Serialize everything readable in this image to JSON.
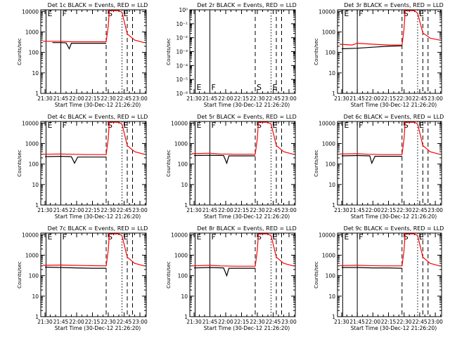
{
  "figure": {
    "xlabel": "Start Time (30-Dec-12 21:26:20)",
    "ylabel": "Counts/sec"
  },
  "chart_data": [
    {
      "type": "line",
      "title": "Det 1c BLACK = Events, RED = LLD",
      "xlabel": "Start Time (30-Dec-12 21:26:20)",
      "ylabel": "Counts/sec",
      "x_ticks": [
        "21:30",
        "21:45",
        "22:00",
        "22:15",
        "22:30",
        "22:45",
        "23:00"
      ],
      "y_ticks": [
        "1",
        "10",
        "100",
        "1000",
        "10000"
      ],
      "y_scale": "log",
      "ylim": [
        1,
        12000
      ],
      "markers": [
        {
          "time": "21:31",
          "label": "E",
          "style": "solid"
        },
        {
          "time": "21:45",
          "label": "F",
          "style": "solid"
        },
        {
          "time": "22:28",
          "label": "S",
          "style": "dashed"
        },
        {
          "time": "22:43",
          "label": "E",
          "style": "dotted"
        },
        {
          "time": "22:48",
          "label": "",
          "style": "dashed"
        },
        {
          "time": "22:53",
          "label": "",
          "style": "dashed"
        }
      ],
      "series": [
        {
          "name": "Events",
          "color": "#000000",
          "x": [
            "21:37",
            "21:45",
            "21:50",
            "21:53",
            "21:55",
            "21:56",
            "22:10",
            "22:28"
          ],
          "y": [
            300,
            300,
            290,
            150,
            280,
            280,
            280,
            280
          ]
        },
        {
          "name": "LLD",
          "color": "#ff0000",
          "x": [
            "21:28",
            "21:45",
            "21:55",
            "22:10",
            "22:28",
            "22:30",
            "22:31",
            "22:40",
            "22:43",
            "22:48",
            "22:55",
            "23:04"
          ],
          "y": [
            350,
            350,
            330,
            330,
            330,
            2000,
            11000,
            11000,
            9000,
            800,
            400,
            300
          ]
        }
      ]
    },
    {
      "type": "line",
      "title": "Det 2r BLACK = Events, RED = LLD",
      "xlabel": "Start Time (30-Dec-12 21:26:20)",
      "ylabel": "Counts/sec",
      "x_ticks": [
        "21:30",
        "21:45",
        "22:00",
        "22:15",
        "22:30",
        "22:45",
        "23:00"
      ],
      "y_ticks": [
        "10⁻⁶",
        "10⁻⁵",
        "10⁻⁴",
        "10⁻³",
        "10⁻²",
        "10⁻¹",
        "10⁰"
      ],
      "y_scale": "log",
      "ylim": [
        1e-06,
        1
      ],
      "markers": [
        {
          "time": "21:31",
          "label": "E",
          "style": "solid"
        },
        {
          "time": "21:45",
          "label": "F",
          "style": "solid"
        },
        {
          "time": "22:28",
          "label": "S",
          "style": "dashed"
        },
        {
          "time": "22:43",
          "label": "E",
          "style": "dotted"
        },
        {
          "time": "22:48",
          "label": "",
          "style": "dashed"
        },
        {
          "time": "22:53",
          "label": "",
          "style": "dashed"
        }
      ],
      "series": []
    },
    {
      "type": "line",
      "title": "Det 3r BLACK = Events, RED = LLD",
      "xlabel": "Start Time (30-Dec-12 21:26:20)",
      "ylabel": "Counts/sec",
      "x_ticks": [
        "21:30",
        "21:45",
        "22:00",
        "22:15",
        "22:30",
        "22:45",
        "23:00"
      ],
      "y_ticks": [
        "1",
        "10",
        "100",
        "1000",
        "10000"
      ],
      "y_scale": "log",
      "ylim": [
        1,
        12000
      ],
      "markers": [
        {
          "time": "21:31",
          "label": "E",
          "style": "solid"
        },
        {
          "time": "21:45",
          "label": "F",
          "style": "solid"
        },
        {
          "time": "22:28",
          "label": "S",
          "style": "dashed"
        },
        {
          "time": "22:43",
          "label": "E",
          "style": "dotted"
        },
        {
          "time": "22:48",
          "label": "",
          "style": "dashed"
        },
        {
          "time": "22:53",
          "label": "",
          "style": "dashed"
        }
      ],
      "series": [
        {
          "name": "Events",
          "color": "#000000",
          "x": [
            "21:30",
            "21:45",
            "22:00",
            "22:15",
            "22:28"
          ],
          "y": [
            150,
            160,
            180,
            200,
            210
          ]
        },
        {
          "name": "LLD",
          "color": "#ff0000",
          "x": [
            "21:28",
            "21:40",
            "21:45",
            "22:00",
            "22:15",
            "22:28",
            "22:30",
            "22:31",
            "22:40",
            "22:43",
            "22:48",
            "22:55",
            "23:04"
          ],
          "y": [
            250,
            230,
            280,
            250,
            230,
            230,
            1500,
            11000,
            11000,
            8000,
            900,
            500,
            400
          ]
        }
      ]
    },
    {
      "type": "line",
      "title": "Det 4c BLACK = Events, RED = LLD",
      "xlabel": "Start Time (30-Dec-12 21:26:20)",
      "ylabel": "Counts/sec",
      "x_ticks": [
        "21:30",
        "21:45",
        "22:00",
        "22:15",
        "22:30",
        "22:45",
        "23:00"
      ],
      "y_ticks": [
        "1",
        "10",
        "100",
        "1000",
        "10000"
      ],
      "y_scale": "log",
      "ylim": [
        1,
        12000
      ],
      "markers": [
        {
          "time": "21:31",
          "label": "E",
          "style": "solid"
        },
        {
          "time": "21:45",
          "label": "F",
          "style": "solid"
        },
        {
          "time": "22:28",
          "label": "S",
          "style": "dashed"
        },
        {
          "time": "22:43",
          "label": "E",
          "style": "dotted"
        },
        {
          "time": "22:48",
          "label": "",
          "style": "dashed"
        },
        {
          "time": "22:53",
          "label": "",
          "style": "dashed"
        }
      ],
      "series": [
        {
          "name": "Events",
          "color": "#000000",
          "x": [
            "21:30",
            "21:45",
            "21:55",
            "21:58",
            "22:01",
            "22:02",
            "22:28"
          ],
          "y": [
            230,
            240,
            230,
            110,
            220,
            220,
            220
          ]
        },
        {
          "name": "LLD",
          "color": "#ff0000",
          "x": [
            "21:28",
            "21:45",
            "21:55",
            "22:10",
            "22:28",
            "22:30",
            "22:31",
            "22:40",
            "22:43",
            "22:48",
            "22:55",
            "23:04"
          ],
          "y": [
            300,
            310,
            300,
            290,
            290,
            1800,
            11000,
            11000,
            9000,
            800,
            400,
            300
          ]
        }
      ]
    },
    {
      "type": "line",
      "title": "Det 5r BLACK = Events, RED = LLD",
      "xlabel": "Start Time (30-Dec-12 21:26:20)",
      "ylabel": "Counts/sec",
      "x_ticks": [
        "21:30",
        "21:45",
        "22:00",
        "22:15",
        "22:30",
        "22:45",
        "23:00"
      ],
      "y_ticks": [
        "1",
        "10",
        "100",
        "1000",
        "10000"
      ],
      "y_scale": "log",
      "ylim": [
        1,
        12000
      ],
      "markers": [
        {
          "time": "21:31",
          "label": "E",
          "style": "solid"
        },
        {
          "time": "21:45",
          "label": "F",
          "style": "solid"
        },
        {
          "time": "22:28",
          "label": "S",
          "style": "dashed"
        },
        {
          "time": "22:43",
          "label": "E",
          "style": "dotted"
        },
        {
          "time": "22:48",
          "label": "",
          "style": "dashed"
        },
        {
          "time": "22:53",
          "label": "",
          "style": "dashed"
        }
      ],
      "series": [
        {
          "name": "Events",
          "color": "#000000",
          "x": [
            "21:30",
            "21:45",
            "21:58",
            "22:01",
            "22:03",
            "22:04",
            "22:28"
          ],
          "y": [
            260,
            270,
            260,
            110,
            250,
            250,
            250
          ]
        },
        {
          "name": "LLD",
          "color": "#ff0000",
          "x": [
            "21:28",
            "21:45",
            "21:55",
            "22:10",
            "22:28",
            "22:30",
            "22:31",
            "22:40",
            "22:43",
            "22:48",
            "22:55",
            "23:04"
          ],
          "y": [
            320,
            340,
            310,
            300,
            300,
            1800,
            11000,
            11000,
            9000,
            800,
            400,
            300
          ]
        }
      ]
    },
    {
      "type": "line",
      "title": "Det 6c BLACK = Events, RED = LLD",
      "xlabel": "Start Time (30-Dec-12 21:26:20)",
      "ylabel": "Counts/sec",
      "x_ticks": [
        "21:30",
        "21:45",
        "22:00",
        "22:15",
        "22:30",
        "22:45",
        "23:00"
      ],
      "y_ticks": [
        "1",
        "10",
        "100",
        "1000",
        "10000"
      ],
      "y_scale": "log",
      "ylim": [
        1,
        12000
      ],
      "markers": [
        {
          "time": "21:31",
          "label": "E",
          "style": "solid"
        },
        {
          "time": "21:45",
          "label": "F",
          "style": "solid"
        },
        {
          "time": "22:28",
          "label": "S",
          "style": "dashed"
        },
        {
          "time": "22:43",
          "label": "E",
          "style": "dotted"
        },
        {
          "time": "22:48",
          "label": "",
          "style": "dashed"
        },
        {
          "time": "22:53",
          "label": "",
          "style": "dashed"
        }
      ],
      "series": [
        {
          "name": "Events",
          "color": "#000000",
          "x": [
            "21:30",
            "21:45",
            "21:57",
            "21:59",
            "22:02",
            "22:03",
            "22:28"
          ],
          "y": [
            250,
            260,
            250,
            110,
            240,
            240,
            240
          ]
        },
        {
          "name": "LLD",
          "color": "#ff0000",
          "x": [
            "21:28",
            "21:45",
            "21:55",
            "22:10",
            "22:28",
            "22:30",
            "22:31",
            "22:40",
            "22:43",
            "22:48",
            "22:55",
            "23:04"
          ],
          "y": [
            310,
            320,
            300,
            290,
            290,
            1800,
            11000,
            11000,
            9000,
            800,
            400,
            300
          ]
        }
      ]
    },
    {
      "type": "line",
      "title": "Det 7c BLACK = Events, RED = LLD",
      "xlabel": "Start Time (30-Dec-12 21:26:20)",
      "ylabel": "Counts/sec",
      "x_ticks": [
        "21:30",
        "21:45",
        "22:00",
        "22:15",
        "22:30",
        "22:45",
        "23:00"
      ],
      "y_ticks": [
        "1",
        "10",
        "100",
        "1000",
        "10000"
      ],
      "y_scale": "log",
      "ylim": [
        1,
        12000
      ],
      "markers": [
        {
          "time": "21:31",
          "label": "E",
          "style": "solid"
        },
        {
          "time": "21:45",
          "label": "F",
          "style": "solid"
        },
        {
          "time": "22:28",
          "label": "S",
          "style": "dashed"
        },
        {
          "time": "22:43",
          "label": "E",
          "style": "dotted"
        },
        {
          "time": "22:48",
          "label": "",
          "style": "dashed"
        },
        {
          "time": "22:53",
          "label": "",
          "style": "dashed"
        }
      ],
      "series": [
        {
          "name": "Events",
          "color": "#000000",
          "x": [
            "21:30",
            "21:45",
            "22:00",
            "22:15",
            "22:28"
          ],
          "y": [
            260,
            250,
            240,
            230,
            230
          ]
        },
        {
          "name": "LLD",
          "color": "#ff0000",
          "x": [
            "21:28",
            "21:45",
            "21:55",
            "22:10",
            "22:28",
            "22:30",
            "22:31",
            "22:40",
            "22:43",
            "22:48",
            "22:55",
            "23:04"
          ],
          "y": [
            320,
            330,
            320,
            310,
            300,
            1800,
            11000,
            11000,
            9000,
            800,
            400,
            300
          ]
        }
      ]
    },
    {
      "type": "line",
      "title": "Det 8r BLACK = Events, RED = LLD",
      "xlabel": "Start Time (30-Dec-12 21:26:20)",
      "ylabel": "Counts/sec",
      "x_ticks": [
        "21:30",
        "21:45",
        "22:00",
        "22:15",
        "22:30",
        "22:45",
        "23:00"
      ],
      "y_ticks": [
        "1",
        "10",
        "100",
        "1000",
        "10000"
      ],
      "y_scale": "log",
      "ylim": [
        1,
        12000
      ],
      "markers": [
        {
          "time": "21:31",
          "label": "E",
          "style": "solid"
        },
        {
          "time": "21:45",
          "label": "F",
          "style": "solid"
        },
        {
          "time": "22:28",
          "label": "S",
          "style": "dashed"
        },
        {
          "time": "22:43",
          "label": "E",
          "style": "dotted"
        },
        {
          "time": "22:48",
          "label": "",
          "style": "dashed"
        },
        {
          "time": "22:53",
          "label": "",
          "style": "dashed"
        }
      ],
      "series": [
        {
          "name": "Events",
          "color": "#000000",
          "x": [
            "21:30",
            "21:45",
            "21:58",
            "22:01",
            "22:03",
            "22:04",
            "22:28"
          ],
          "y": [
            240,
            250,
            240,
            100,
            230,
            230,
            230
          ]
        },
        {
          "name": "LLD",
          "color": "#ff0000",
          "x": [
            "21:28",
            "21:45",
            "21:55",
            "22:10",
            "22:28",
            "22:30",
            "22:31",
            "22:40",
            "22:43",
            "22:48",
            "22:55",
            "23:04"
          ],
          "y": [
            300,
            320,
            300,
            290,
            290,
            1800,
            11000,
            11000,
            9000,
            800,
            400,
            300
          ]
        }
      ]
    },
    {
      "type": "line",
      "title": "Det 9c BLACK = Events, RED = LLD",
      "xlabel": "Start Time (30-Dec-12 21:26:20)",
      "ylabel": "Counts/sec",
      "x_ticks": [
        "21:30",
        "21:45",
        "22:00",
        "22:15",
        "22:30",
        "22:45",
        "23:00"
      ],
      "y_ticks": [
        "1",
        "10",
        "100",
        "1000",
        "10000"
      ],
      "y_scale": "log",
      "ylim": [
        1,
        12000
      ],
      "markers": [
        {
          "time": "21:31",
          "label": "E",
          "style": "solid"
        },
        {
          "time": "21:45",
          "label": "F",
          "style": "solid"
        },
        {
          "time": "22:28",
          "label": "S",
          "style": "dashed"
        },
        {
          "time": "22:43",
          "label": "E",
          "style": "dotted"
        },
        {
          "time": "22:48",
          "label": "",
          "style": "dashed"
        },
        {
          "time": "22:53",
          "label": "",
          "style": "dashed"
        }
      ],
      "series": [
        {
          "name": "Events",
          "color": "#000000",
          "x": [
            "21:30",
            "21:45",
            "22:00",
            "22:15",
            "22:28"
          ],
          "y": [
            250,
            250,
            240,
            240,
            230
          ]
        },
        {
          "name": "LLD",
          "color": "#ff0000",
          "x": [
            "21:28",
            "21:45",
            "21:55",
            "22:10",
            "22:28",
            "22:30",
            "22:31",
            "22:40",
            "22:43",
            "22:48",
            "22:55",
            "23:04"
          ],
          "y": [
            310,
            320,
            310,
            300,
            300,
            1800,
            11000,
            11000,
            9000,
            800,
            400,
            300
          ]
        }
      ]
    }
  ]
}
